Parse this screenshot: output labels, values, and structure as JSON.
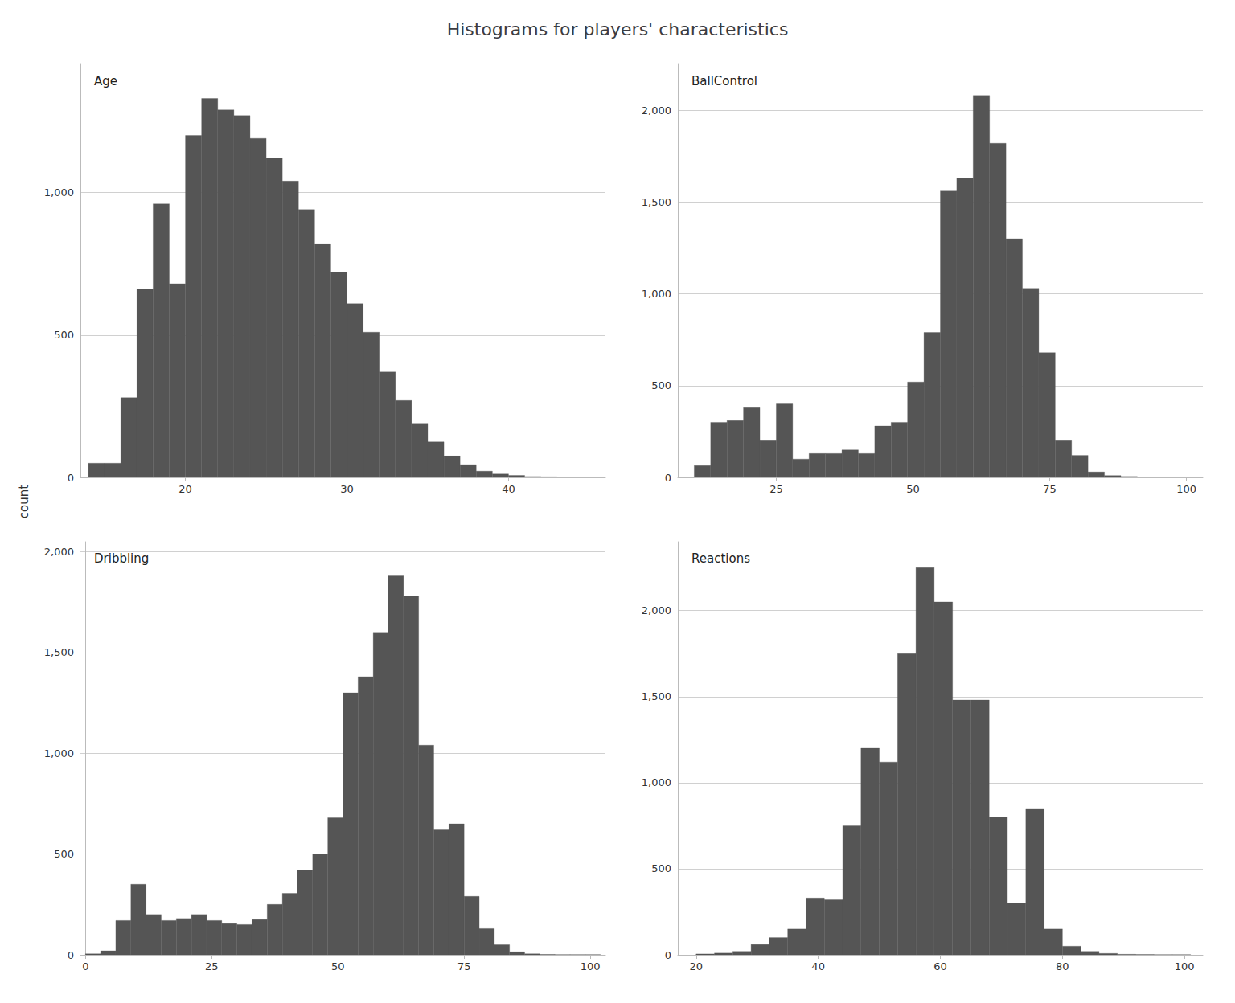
{
  "title": "Histograms for players' characteristics",
  "ylabel": "count",
  "chart_data": [
    {
      "type": "histogram",
      "title": "Age",
      "color": "#555555",
      "grid": true,
      "bins": [
        14,
        15,
        16,
        17,
        18,
        19,
        20,
        21,
        22,
        23,
        24,
        25,
        26,
        27,
        28,
        29,
        30,
        31,
        32,
        33,
        34,
        35,
        36,
        37,
        38,
        39,
        40,
        41,
        42,
        43,
        44,
        45
      ],
      "values": [
        50,
        50,
        280,
        660,
        960,
        680,
        1200,
        1330,
        1290,
        1270,
        1190,
        1120,
        1040,
        940,
        820,
        720,
        610,
        510,
        370,
        270,
        190,
        125,
        75,
        45,
        22,
        12,
        7,
        3,
        2,
        1,
        1
      ],
      "xlim": [
        13.5,
        46
      ],
      "xticks": [
        20,
        30,
        40
      ],
      "ylim": [
        0,
        1450
      ],
      "yticks": [
        0,
        500,
        1000
      ]
    },
    {
      "type": "histogram",
      "title": "BallControl",
      "color": "#555555",
      "grid": true,
      "bins": [
        10,
        13,
        16,
        19,
        22,
        25,
        28,
        31,
        34,
        37,
        40,
        43,
        46,
        49,
        52,
        55,
        58,
        61,
        64,
        67,
        70,
        73,
        76,
        79,
        82,
        85,
        88,
        91,
        94,
        97,
        100
      ],
      "values": [
        65,
        300,
        310,
        380,
        200,
        400,
        100,
        130,
        130,
        150,
        130,
        280,
        300,
        520,
        790,
        1560,
        1630,
        2080,
        1820,
        1300,
        1030,
        680,
        200,
        120,
        30,
        10,
        5,
        2,
        1,
        1
      ],
      "xlim": [
        7,
        103
      ],
      "xticks": [
        25,
        50,
        75,
        100
      ],
      "ylim": [
        0,
        2250
      ],
      "yticks": [
        0,
        500,
        1000,
        1500,
        2000
      ]
    },
    {
      "type": "histogram",
      "title": "Dribbling",
      "color": "#555555",
      "grid": true,
      "bins": [
        0,
        3,
        6,
        9,
        12,
        15,
        18,
        21,
        24,
        27,
        30,
        33,
        36,
        39,
        42,
        45,
        48,
        51,
        54,
        57,
        60,
        63,
        66,
        69,
        72,
        75,
        78,
        81,
        84,
        87,
        90,
        93,
        96,
        99,
        102
      ],
      "values": [
        5,
        20,
        170,
        350,
        200,
        170,
        180,
        200,
        170,
        155,
        150,
        175,
        250,
        305,
        420,
        500,
        680,
        1300,
        1380,
        1600,
        1880,
        1780,
        1040,
        620,
        650,
        290,
        130,
        50,
        15,
        5,
        2,
        1,
        1,
        1
      ],
      "xlim": [
        -1,
        103
      ],
      "xticks": [
        0,
        25,
        50,
        75,
        100
      ],
      "ylim": [
        0,
        2050
      ],
      "yticks": [
        0,
        500,
        1000,
        1500,
        2000
      ]
    },
    {
      "type": "histogram",
      "title": "Reactions",
      "color": "#555555",
      "grid": true,
      "bins": [
        20,
        23,
        26,
        29,
        32,
        35,
        38,
        41,
        44,
        47,
        50,
        53,
        56,
        59,
        62,
        65,
        68,
        71,
        74,
        77,
        80,
        83,
        86,
        89,
        92,
        95,
        98,
        101
      ],
      "values": [
        5,
        10,
        20,
        60,
        100,
        150,
        330,
        320,
        750,
        1200,
        1120,
        1750,
        2250,
        2050,
        1480,
        1480,
        800,
        300,
        850,
        150,
        50,
        20,
        8,
        3,
        2,
        1,
        1
      ],
      "xlim": [
        17,
        103
      ],
      "xticks": [
        20,
        40,
        60,
        80,
        100
      ],
      "ylim": [
        0,
        2400
      ],
      "yticks": [
        0,
        500,
        1000,
        1500,
        2000
      ]
    }
  ]
}
